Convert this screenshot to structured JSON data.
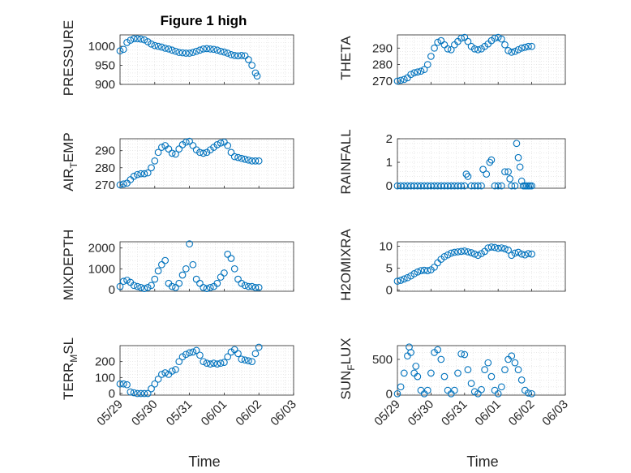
{
  "figure": {
    "title": "Figure 1 high",
    "xlabel": "Time",
    "marker_color": "#0072BD"
  },
  "chart_data": [
    {
      "type": "scatter",
      "id": "pressure",
      "title": "Figure 1 high",
      "ylabel": "PRESSURE",
      "ylim": [
        900,
        1030
      ],
      "yticks": [
        900,
        950,
        1000
      ],
      "ytick_labels": [
        "900",
        "950",
        "1000"
      ],
      "xlim": [
        0,
        5
      ],
      "xticks": [
        0,
        1,
        2,
        3,
        4,
        5
      ],
      "xtick_labels": [
        "05/29",
        "05/30",
        "05/31",
        "06/01",
        "06/02",
        "06/03"
      ],
      "show_xtick_labels": false,
      "grid": true,
      "x": [
        0.0,
        0.1,
        0.2,
        0.3,
        0.4,
        0.5,
        0.6,
        0.7,
        0.8,
        0.9,
        1.0,
        1.1,
        1.2,
        1.3,
        1.4,
        1.5,
        1.6,
        1.7,
        1.8,
        1.9,
        2.0,
        2.1,
        2.2,
        2.3,
        2.4,
        2.5,
        2.6,
        2.7,
        2.8,
        2.9,
        3.0,
        3.1,
        3.2,
        3.3,
        3.4,
        3.5,
        3.6,
        3.7,
        3.8,
        3.9,
        3.95
      ],
      "y": [
        988,
        992,
        1010,
        1016,
        1020,
        1020,
        1019,
        1017,
        1012,
        1006,
        1002,
        1000,
        998,
        995,
        993,
        990,
        987,
        984,
        983,
        982,
        982,
        984,
        987,
        990,
        993,
        994,
        993,
        992,
        990,
        987,
        985,
        982,
        978,
        976,
        975,
        976,
        975,
        965,
        950,
        930,
        922
      ]
    },
    {
      "type": "scatter",
      "id": "theta",
      "ylabel": "THETA",
      "ylim": [
        268,
        298
      ],
      "yticks": [
        270,
        280,
        290
      ],
      "ytick_labels": [
        "270",
        "280",
        "290"
      ],
      "xlim": [
        0,
        5
      ],
      "xticks": [
        0,
        1,
        2,
        3,
        4,
        5
      ],
      "xtick_labels": [
        "05/29",
        "05/30",
        "05/31",
        "06/01",
        "06/02",
        "06/03"
      ],
      "show_xtick_labels": false,
      "grid": true,
      "x": [
        0.0,
        0.1,
        0.2,
        0.3,
        0.4,
        0.5,
        0.6,
        0.7,
        0.8,
        0.9,
        1.0,
        1.1,
        1.2,
        1.3,
        1.4,
        1.5,
        1.6,
        1.7,
        1.8,
        1.9,
        2.0,
        2.1,
        2.2,
        2.3,
        2.4,
        2.5,
        2.6,
        2.7,
        2.8,
        2.9,
        3.0,
        3.1,
        3.2,
        3.3,
        3.4,
        3.5,
        3.6,
        3.7,
        3.8,
        3.9,
        4.0
      ],
      "y": [
        270,
        270.5,
        271,
        272,
        274,
        275,
        275.5,
        276,
        277,
        280,
        285,
        290,
        293.5,
        294.5,
        292,
        289.5,
        289,
        292,
        294,
        296,
        296.5,
        294,
        291,
        289.5,
        289,
        289.5,
        291,
        292.5,
        294.5,
        296,
        296.5,
        295.5,
        292,
        288.5,
        287.5,
        288,
        289,
        290,
        290.5,
        291,
        291
      ]
    },
    {
      "type": "scatter",
      "id": "air_temp",
      "ylabel": "AIR_TEMP",
      "ylim": [
        268,
        297
      ],
      "yticks": [
        270,
        280,
        290
      ],
      "ytick_labels": [
        "270",
        "280",
        "290"
      ],
      "xlim": [
        0,
        5
      ],
      "xticks": [
        0,
        1,
        2,
        3,
        4,
        5
      ],
      "xtick_labels": [
        "05/29",
        "05/30",
        "05/31",
        "06/01",
        "06/02",
        "06/03"
      ],
      "show_xtick_labels": false,
      "grid": true,
      "x": [
        0.0,
        0.1,
        0.2,
        0.3,
        0.4,
        0.5,
        0.6,
        0.7,
        0.8,
        0.9,
        1.0,
        1.1,
        1.2,
        1.3,
        1.4,
        1.5,
        1.6,
        1.7,
        1.8,
        1.9,
        2.0,
        2.1,
        2.2,
        2.3,
        2.4,
        2.5,
        2.6,
        2.7,
        2.8,
        2.9,
        3.0,
        3.1,
        3.2,
        3.3,
        3.4,
        3.5,
        3.6,
        3.7,
        3.8,
        3.9,
        4.0
      ],
      "y": [
        270,
        270.5,
        271,
        273,
        275,
        276,
        276.5,
        276.5,
        277,
        280,
        284,
        289,
        292,
        293,
        291,
        288.5,
        288,
        291,
        293.5,
        295,
        295.5,
        293,
        290.5,
        289,
        288.5,
        289,
        290.5,
        292,
        293.5,
        294.5,
        295,
        293,
        289,
        286.5,
        286,
        285.5,
        285,
        284.5,
        284,
        284,
        284
      ]
    },
    {
      "type": "scatter",
      "id": "rainfall",
      "ylabel": "RAINFALL",
      "ylim": [
        -0.1,
        2
      ],
      "yticks": [
        0,
        1,
        2
      ],
      "ytick_labels": [
        "0",
        "1",
        "2"
      ],
      "xlim": [
        0,
        5
      ],
      "xticks": [
        0,
        1,
        2,
        3,
        4,
        5
      ],
      "xtick_labels": [
        "05/29",
        "05/30",
        "05/31",
        "06/01",
        "06/02",
        "06/03"
      ],
      "show_xtick_labels": false,
      "grid": true,
      "x": [
        0.0,
        0.1,
        0.2,
        0.3,
        0.4,
        0.5,
        0.6,
        0.7,
        0.8,
        0.9,
        1.0,
        1.1,
        1.2,
        1.3,
        1.4,
        1.5,
        1.6,
        1.7,
        1.8,
        1.9,
        2.0,
        2.05,
        2.1,
        2.2,
        2.3,
        2.4,
        2.5,
        2.55,
        2.65,
        2.75,
        2.8,
        2.9,
        3.0,
        3.1,
        3.2,
        3.3,
        3.35,
        3.4,
        3.5,
        3.55,
        3.6,
        3.65,
        3.7,
        3.75,
        3.8,
        3.85,
        3.9,
        3.95,
        4.0
      ],
      "y": [
        0,
        0,
        0,
        0,
        0,
        0,
        0,
        0,
        0,
        0,
        0,
        0,
        0,
        0,
        0,
        0,
        0,
        0,
        0,
        0,
        0,
        0.5,
        0.4,
        0,
        0,
        0,
        0,
        0.7,
        0.5,
        1.0,
        1.1,
        0,
        0,
        0,
        0.6,
        0.6,
        0.3,
        0,
        0,
        1.8,
        1.2,
        0.8,
        0.2,
        0,
        0,
        0,
        0,
        0,
        0
      ]
    },
    {
      "type": "scatter",
      "id": "mixdepth",
      "ylabel": "MIXDEPTH",
      "ylim": [
        -80,
        2300
      ],
      "yticks": [
        0,
        1000,
        2000
      ],
      "ytick_labels": [
        "0",
        "1000",
        "2000"
      ],
      "xlim": [
        0,
        5
      ],
      "xticks": [
        0,
        1,
        2,
        3,
        4,
        5
      ],
      "xtick_labels": [
        "05/29",
        "05/30",
        "05/31",
        "06/01",
        "06/02",
        "06/03"
      ],
      "show_xtick_labels": false,
      "grid": true,
      "x": [
        0.0,
        0.1,
        0.2,
        0.3,
        0.4,
        0.5,
        0.6,
        0.7,
        0.8,
        0.9,
        1.0,
        1.1,
        1.2,
        1.3,
        1.4,
        1.5,
        1.6,
        1.7,
        1.8,
        1.9,
        2.0,
        2.1,
        2.2,
        2.3,
        2.4,
        2.5,
        2.6,
        2.7,
        2.8,
        2.9,
        3.0,
        3.1,
        3.2,
        3.3,
        3.4,
        3.5,
        3.6,
        3.7,
        3.8,
        3.9,
        4.0
      ],
      "y": [
        150,
        400,
        450,
        350,
        200,
        150,
        100,
        50,
        100,
        200,
        500,
        900,
        1200,
        1400,
        300,
        150,
        100,
        300,
        700,
        1000,
        2200,
        1200,
        500,
        300,
        100,
        50,
        100,
        150,
        300,
        600,
        800,
        1700,
        1500,
        1000,
        500,
        300,
        200,
        150,
        150,
        100,
        100
      ]
    },
    {
      "type": "scatter",
      "id": "h2omixra",
      "ylabel": "H2OMIXRA",
      "ylim": [
        -0.3,
        11
      ],
      "yticks": [
        0,
        5,
        10
      ],
      "ytick_labels": [
        "0",
        "5",
        "10"
      ],
      "xlim": [
        0,
        5
      ],
      "xticks": [
        0,
        1,
        2,
        3,
        4,
        5
      ],
      "xtick_labels": [
        "05/29",
        "05/30",
        "05/31",
        "06/01",
        "06/02",
        "06/03"
      ],
      "show_xtick_labels": false,
      "grid": true,
      "x": [
        0.0,
        0.1,
        0.2,
        0.3,
        0.4,
        0.5,
        0.6,
        0.7,
        0.8,
        0.9,
        1.0,
        1.1,
        1.2,
        1.3,
        1.4,
        1.5,
        1.6,
        1.7,
        1.8,
        1.9,
        2.0,
        2.1,
        2.2,
        2.3,
        2.4,
        2.5,
        2.6,
        2.7,
        2.8,
        2.9,
        3.0,
        3.1,
        3.2,
        3.3,
        3.4,
        3.5,
        3.6,
        3.7,
        3.8,
        3.9,
        4.0
      ],
      "y": [
        2,
        2.2,
        2.5,
        2.8,
        3.2,
        3.7,
        4.1,
        4.4,
        4.5,
        4.4,
        4.6,
        5.2,
        6.2,
        7.0,
        7.6,
        8.0,
        8.4,
        8.6,
        8.7,
        8.8,
        8.9,
        8.7,
        8.5,
        8.2,
        7.9,
        8.3,
        8.8,
        9.6,
        9.8,
        9.7,
        9.5,
        9.6,
        9.4,
        9.1,
        7.9,
        8.4,
        8.6,
        8.2,
        8.0,
        8.3,
        8.2
      ]
    },
    {
      "type": "scatter",
      "id": "terr_msl",
      "ylabel": "TERR_MSL",
      "ylim": [
        -10,
        300
      ],
      "yticks": [
        0,
        100,
        200
      ],
      "ytick_labels": [
        "0",
        "100",
        "200"
      ],
      "xlim": [
        0,
        5
      ],
      "xticks": [
        0,
        1,
        2,
        3,
        4,
        5
      ],
      "xtick_labels": [
        "05/29",
        "05/30",
        "05/31",
        "06/01",
        "06/02",
        "06/03"
      ],
      "show_xtick_labels": true,
      "grid": true,
      "x": [
        0.0,
        0.1,
        0.2,
        0.3,
        0.4,
        0.5,
        0.6,
        0.7,
        0.8,
        0.9,
        1.0,
        1.1,
        1.2,
        1.3,
        1.4,
        1.5,
        1.6,
        1.7,
        1.8,
        1.9,
        2.0,
        2.1,
        2.2,
        2.3,
        2.4,
        2.5,
        2.6,
        2.7,
        2.8,
        2.9,
        3.0,
        3.1,
        3.2,
        3.3,
        3.4,
        3.5,
        3.6,
        3.7,
        3.8,
        3.9,
        4.0
      ],
      "y": [
        60,
        60,
        55,
        10,
        5,
        0,
        0,
        0,
        0,
        30,
        60,
        90,
        120,
        130,
        120,
        140,
        150,
        200,
        230,
        245,
        255,
        260,
        270,
        240,
        200,
        190,
        185,
        190,
        185,
        190,
        195,
        230,
        260,
        275,
        250,
        215,
        210,
        205,
        200,
        250,
        290
      ]
    },
    {
      "type": "scatter",
      "id": "sun_flux",
      "ylabel": "SUN_FLUX",
      "ylim": [
        -20,
        700
      ],
      "yticks": [
        0,
        500
      ],
      "ytick_labels": [
        "0",
        "500"
      ],
      "xlim": [
        0,
        5
      ],
      "xticks": [
        0,
        1,
        2,
        3,
        4,
        5
      ],
      "xtick_labels": [
        "05/29",
        "05/30",
        "05/31",
        "06/01",
        "06/02",
        "06/03"
      ],
      "show_xtick_labels": true,
      "grid": true,
      "x": [
        0.0,
        0.1,
        0.2,
        0.3,
        0.35,
        0.4,
        0.5,
        0.55,
        0.6,
        0.7,
        0.8,
        0.9,
        1.0,
        1.1,
        1.2,
        1.3,
        1.4,
        1.5,
        1.6,
        1.7,
        1.8,
        1.9,
        2.0,
        2.1,
        2.2,
        2.3,
        2.4,
        2.5,
        2.6,
        2.7,
        2.8,
        2.9,
        3.0,
        3.1,
        3.2,
        3.3,
        3.4,
        3.5,
        3.6,
        3.7,
        3.8,
        3.9,
        4.0
      ],
      "y": [
        0,
        100,
        300,
        550,
        680,
        600,
        300,
        400,
        250,
        50,
        0,
        50,
        300,
        600,
        640,
        500,
        250,
        50,
        0,
        50,
        300,
        580,
        570,
        350,
        150,
        30,
        0,
        60,
        350,
        450,
        250,
        50,
        0,
        100,
        350,
        500,
        550,
        450,
        350,
        200,
        50,
        10,
        0
      ]
    }
  ]
}
